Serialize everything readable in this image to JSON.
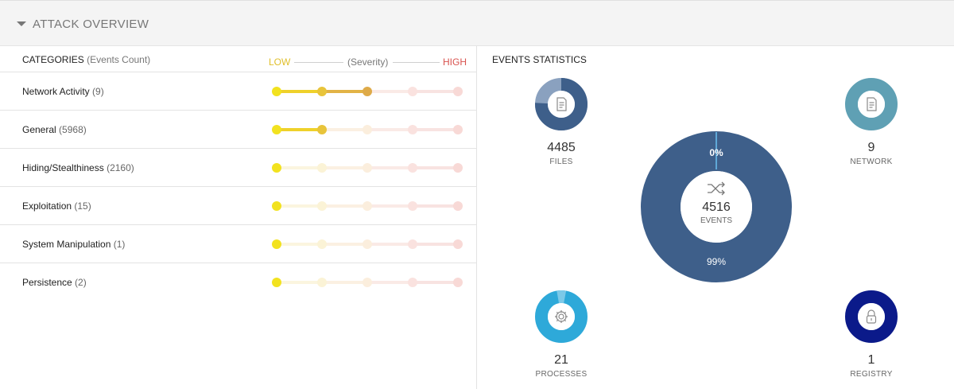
{
  "header": {
    "title": "ATTACK OVERVIEW"
  },
  "categories": {
    "heading": "CATEGORIES",
    "heading_sub": "(Events Count)",
    "severity": {
      "low": "LOW",
      "mid": "(Severity)",
      "high": "HIGH"
    },
    "rows": [
      {
        "name": "Network Activity",
        "count": "(9)",
        "level": 3
      },
      {
        "name": "General",
        "count": "(5968)",
        "level": 2
      },
      {
        "name": "Hiding/Stealthiness",
        "count": "(2160)",
        "level": 1
      },
      {
        "name": "Exploitation",
        "count": "(15)",
        "level": 1
      },
      {
        "name": "System Manipulation",
        "count": "(1)",
        "level": 1
      },
      {
        "name": "Persistence",
        "count": "(2)",
        "level": 1
      }
    ]
  },
  "events": {
    "title": "EVENTS STATISTICS",
    "total": {
      "value": "4516",
      "label": "EVENTS",
      "icon": "shuffle-icon",
      "pct_top": "0%",
      "pct_bottom": "99%"
    },
    "files": {
      "value": "4485",
      "label": "FILES",
      "icon": "document-icon",
      "color": "#3e5f8a"
    },
    "network": {
      "value": "9",
      "label": "NETWORK",
      "icon": "document-icon",
      "color": "#5fa0b4"
    },
    "processes": {
      "value": "21",
      "label": "PROCESSES",
      "icon": "gear-icon",
      "color": "#2ea9d9"
    },
    "registry": {
      "value": "1",
      "label": "REGISTRY",
      "icon": "lock-icon",
      "color": "#0b1a8a"
    }
  }
}
